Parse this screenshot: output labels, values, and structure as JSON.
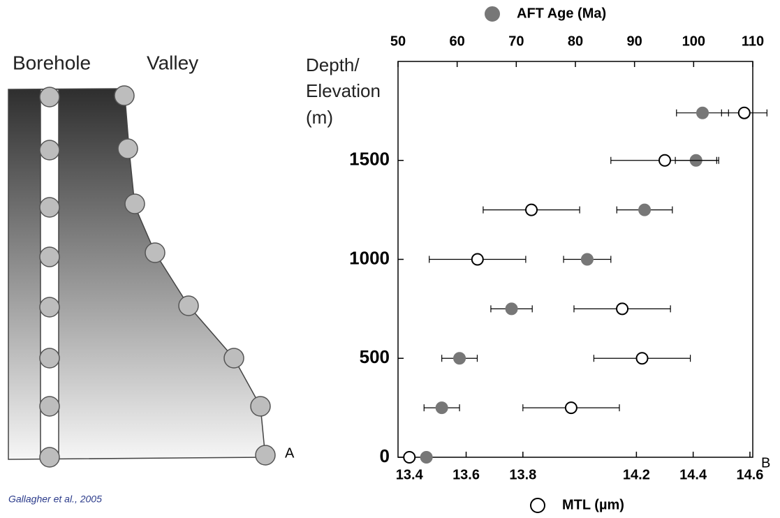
{
  "chart_data": {
    "type": "scatter",
    "panel_labels": [
      "A",
      "B"
    ],
    "diagram_labels": [
      "Borehole",
      "Valley"
    ],
    "citation": "Gallagher et al., 2005",
    "ylabel": [
      "Depth/",
      "Elevation",
      "(m)"
    ],
    "ylim": [
      0,
      2000
    ],
    "yticks": [
      0,
      500,
      1000,
      1500
    ],
    "xlim": [
      13.36,
      14.61
    ],
    "xticks": [
      13.4,
      13.6,
      13.8,
      14.2,
      14.4,
      14.6
    ],
    "x2lim": [
      50,
      110
    ],
    "x2ticks": [
      50,
      60,
      70,
      80,
      90,
      100,
      110
    ],
    "series": [
      {
        "name": "AFT Age (Ma)",
        "color": "#777777",
        "axis": "x2",
        "marker": "filled",
        "x": [
          101.5,
          100.4,
          91.7,
          82.0,
          69.2,
          60.4,
          57.4,
          54.8
        ],
        "x_error": [
          4.4,
          3.5,
          4.7,
          4,
          3.5,
          3,
          3,
          null
        ],
        "values": [
          1740,
          1500,
          1250,
          1000,
          750,
          500,
          250,
          0
        ]
      },
      {
        "name": "MTL (µm)",
        "color": "#000000",
        "axis": "x",
        "marker": "open",
        "x": [
          14.58,
          14.3,
          13.83,
          13.64,
          14.15,
          14.22,
          13.97,
          13.4
        ],
        "x_error": [
          0.08,
          0.19,
          0.17,
          0.17,
          0.17,
          0.17,
          0.17,
          null
        ],
        "values": [
          1740,
          1500,
          1250,
          1000,
          750,
          500,
          250,
          0
        ]
      }
    ]
  }
}
